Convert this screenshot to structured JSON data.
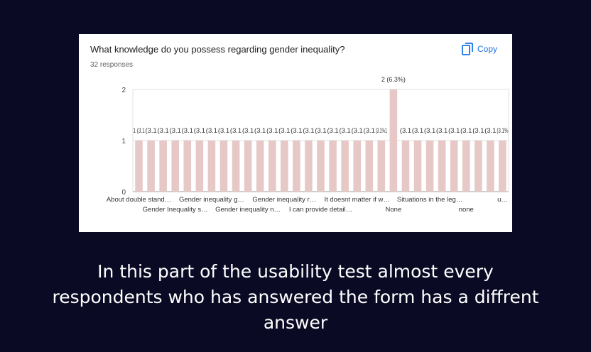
{
  "question": "What knowledge do you possess regarding gender inequality?",
  "responses": "32 responses",
  "copy_label": "Copy",
  "colors": {
    "bar": "#e6c8c7",
    "background": "#0b0a24",
    "accent": "#1a73e8"
  },
  "chart_data": {
    "type": "bar",
    "title": "What knowledge do you possess regarding gender inequality?",
    "ylim": [
      0,
      2
    ],
    "yticks": [
      "0",
      "1",
      "2"
    ],
    "grid": true,
    "categories": [
      "About double stand…",
      "",
      "",
      "Gender Inequality s…",
      "",
      "",
      "Gender inequality g…",
      "",
      "",
      "Gender inequality n…",
      "",
      "",
      "Gender inequality r…",
      "",
      "",
      "I can provide detail…",
      "",
      "",
      "It doesnt matter if w…",
      "",
      "",
      "None",
      "",
      "",
      "Situations in the leg…",
      "",
      "",
      "none",
      "",
      "",
      "u…"
    ],
    "values": [
      1,
      1,
      1,
      1,
      1,
      1,
      1,
      1,
      1,
      1,
      1,
      1,
      1,
      1,
      1,
      1,
      1,
      1,
      1,
      1,
      1,
      2,
      1,
      1,
      1,
      1,
      1,
      1,
      1,
      1,
      1
    ],
    "data_labels": [
      "1 (3.1",
      "(3.1",
      "(3.1",
      "(3.1",
      "(3.1",
      "(3.1",
      "(3.1",
      "(3.1",
      "(3.1",
      "(3.1",
      "(3.1",
      "(3.1",
      "(3.1",
      "(3.1",
      "(3.1",
      "(3.1",
      "(3.1",
      "(3.1",
      "(3.1",
      "(3.1",
      "(3.1%1",
      "2 (6.3%)",
      "(3.1",
      "(3.1",
      "(3.1",
      "(3.1",
      "(3.1",
      "(3.1",
      "(3.1",
      "(3.1",
      "(3.1%"
    ]
  },
  "caption": "In this part of the usability test almost every respondents who has answered the form has a diffrent answer"
}
